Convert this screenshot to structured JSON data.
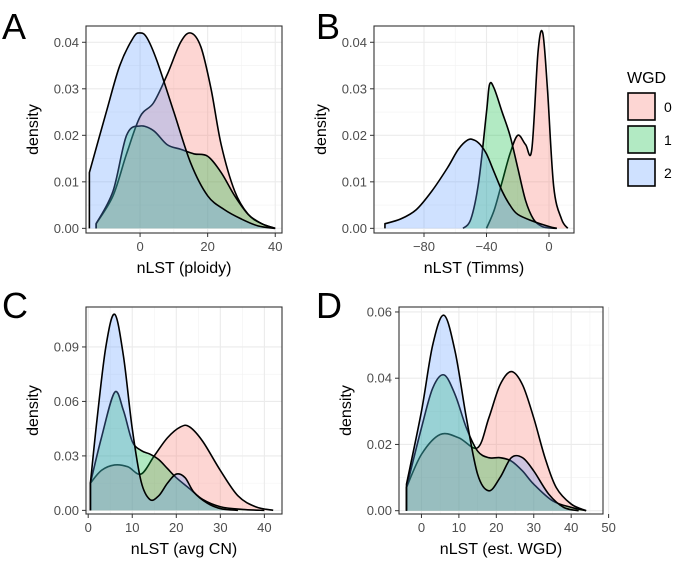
{
  "legend": {
    "title": "WGD",
    "entries": [
      {
        "label": "0",
        "color": "#f8766d"
      },
      {
        "label": "1",
        "color": "#00ba38"
      },
      {
        "label": "2",
        "color": "#619cff"
      }
    ]
  },
  "chart_data": [
    {
      "type": "area",
      "panel_label": "A",
      "xlabel": "nLST (ploidy)",
      "ylabel": "density",
      "xlim": [
        -16,
        42
      ],
      "ylim": [
        -0.001,
        0.0435
      ],
      "xticks": [
        0,
        20,
        40
      ],
      "xtick_labels": [
        "0",
        "20",
        "40"
      ],
      "yticks": [
        0.0,
        0.01,
        0.02,
        0.03,
        0.04
      ],
      "ytick_labels": [
        "0.00",
        "0.01",
        "0.02",
        "0.03",
        "0.04"
      ],
      "series": [
        {
          "name": "0",
          "x": [
            -13,
            -8,
            -4,
            0,
            4,
            8,
            12,
            15,
            18,
            21,
            24,
            28,
            32,
            36,
            40
          ],
          "y": [
            0.001,
            0.007,
            0.016,
            0.024,
            0.027,
            0.033,
            0.04,
            0.042,
            0.039,
            0.03,
            0.018,
            0.008,
            0.003,
            0.001,
            0.0
          ]
        },
        {
          "name": "1",
          "x": [
            -13,
            -8,
            -4,
            0,
            4,
            8,
            12,
            16,
            20,
            24,
            28,
            32,
            36,
            40
          ],
          "y": [
            0.001,
            0.008,
            0.02,
            0.022,
            0.021,
            0.018,
            0.017,
            0.016,
            0.0155,
            0.012,
            0.007,
            0.003,
            0.001,
            0.0
          ]
        },
        {
          "name": "2",
          "x": [
            -15,
            -10,
            -6,
            -2,
            0,
            2,
            5,
            10,
            15,
            20,
            25,
            30,
            35,
            40
          ],
          "y": [
            0.012,
            0.025,
            0.035,
            0.041,
            0.042,
            0.041,
            0.036,
            0.025,
            0.014,
            0.007,
            0.004,
            0.002,
            0.0005,
            0.0
          ]
        }
      ]
    },
    {
      "type": "area",
      "panel_label": "B",
      "xlabel": "nLST (Timms)",
      "ylabel": "density",
      "xlim": [
        -112,
        16
      ],
      "ylim": [
        -0.001,
        0.0435
      ],
      "xticks": [
        -80,
        -40,
        0
      ],
      "xtick_labels": [
        "−80",
        "−40",
        "0"
      ],
      "yticks": [
        0.0,
        0.01,
        0.02,
        0.03,
        0.04
      ],
      "ytick_labels": [
        "0.00",
        "0.01",
        "0.02",
        "0.03",
        "0.04"
      ],
      "series": [
        {
          "name": "0",
          "x": [
            -40,
            -35,
            -30,
            -25,
            -20,
            -15,
            -11,
            -7,
            -4,
            -1,
            3,
            8,
            12
          ],
          "y": [
            0.0,
            0.004,
            0.01,
            0.016,
            0.02,
            0.018,
            0.017,
            0.038,
            0.042,
            0.03,
            0.009,
            0.002,
            0.0
          ]
        },
        {
          "name": "1",
          "x": [
            -55,
            -50,
            -45,
            -40,
            -38,
            -35,
            -30,
            -25,
            -20,
            -15,
            -10,
            -5,
            0,
            5
          ],
          "y": [
            0.0,
            0.002,
            0.01,
            0.025,
            0.031,
            0.03,
            0.025,
            0.02,
            0.013,
            0.006,
            0.002,
            0.0005,
            0.0001,
            0.0
          ]
        },
        {
          "name": "2",
          "x": [
            -105,
            -95,
            -85,
            -75,
            -65,
            -58,
            -52,
            -48,
            -44,
            -40,
            -35,
            -30,
            -25,
            -20,
            -10,
            0,
            5
          ],
          "y": [
            0.001,
            0.002,
            0.004,
            0.008,
            0.013,
            0.017,
            0.019,
            0.019,
            0.018,
            0.016,
            0.012,
            0.008,
            0.005,
            0.003,
            0.0015,
            0.0004,
            0.0
          ]
        }
      ]
    },
    {
      "type": "area",
      "panel_label": "C",
      "xlabel": "nLST (avg CN)",
      "ylabel": "density",
      "xlim": [
        -0.5,
        44
      ],
      "ylim": [
        -0.002,
        0.112
      ],
      "xticks": [
        0,
        10,
        20,
        30,
        40
      ],
      "xtick_labels": [
        "0",
        "10",
        "20",
        "30",
        "40"
      ],
      "yticks": [
        0.0,
        0.03,
        0.06,
        0.09
      ],
      "ytick_labels": [
        "0.00",
        "0.03",
        "0.06",
        "0.09"
      ],
      "series": [
        {
          "name": "0",
          "x": [
            0.5,
            3,
            6,
            9,
            12,
            15,
            18,
            21,
            23,
            26,
            30,
            34,
            38,
            42
          ],
          "y": [
            0.015,
            0.022,
            0.025,
            0.024,
            0.02,
            0.03,
            0.04,
            0.046,
            0.046,
            0.038,
            0.022,
            0.008,
            0.002,
            0.0
          ]
        },
        {
          "name": "1",
          "x": [
            0.5,
            3,
            6,
            8,
            10,
            12,
            14,
            16,
            18,
            20,
            23,
            26,
            30,
            35,
            40
          ],
          "y": [
            0.015,
            0.04,
            0.065,
            0.055,
            0.038,
            0.033,
            0.031,
            0.028,
            0.023,
            0.018,
            0.012,
            0.006,
            0.002,
            0.0005,
            0.0
          ]
        },
        {
          "name": "2",
          "x": [
            0.5,
            2,
            4,
            6,
            8,
            10,
            12,
            14,
            16,
            18,
            20,
            22,
            24,
            27,
            30,
            34
          ],
          "y": [
            0.015,
            0.05,
            0.09,
            0.108,
            0.085,
            0.045,
            0.016,
            0.006,
            0.008,
            0.015,
            0.02,
            0.018,
            0.01,
            0.004,
            0.001,
            0.0
          ]
        }
      ]
    },
    {
      "type": "area",
      "panel_label": "D",
      "xlabel": "nLST (est. WGD)",
      "ylabel": "density",
      "xlim": [
        -6,
        48.5
      ],
      "ylim": [
        -0.001,
        0.0615
      ],
      "xticks": [
        0,
        10,
        20,
        30,
        40,
        50
      ],
      "xtick_labels": [
        "0",
        "10",
        "20",
        "30",
        "40",
        "50"
      ],
      "yticks": [
        0.0,
        0.02,
        0.04,
        0.06
      ],
      "ytick_labels": [
        "0.00",
        "0.02",
        "0.04",
        "0.06"
      ],
      "series": [
        {
          "name": "0",
          "x": [
            -4,
            0,
            5,
            10,
            15,
            18,
            21,
            24,
            27,
            30,
            33,
            36,
            40,
            44
          ],
          "y": [
            0.007,
            0.017,
            0.023,
            0.022,
            0.019,
            0.028,
            0.038,
            0.042,
            0.038,
            0.028,
            0.016,
            0.007,
            0.002,
            0.0
          ]
        },
        {
          "name": "1",
          "x": [
            -4,
            0,
            3,
            6,
            9,
            12,
            15,
            18,
            21,
            24,
            27,
            30,
            35,
            40,
            44
          ],
          "y": [
            0.007,
            0.025,
            0.037,
            0.041,
            0.035,
            0.025,
            0.018,
            0.016,
            0.016,
            0.015,
            0.012,
            0.008,
            0.003,
            0.001,
            0.0
          ]
        },
        {
          "name": "2",
          "x": [
            -4,
            0,
            3,
            6,
            9,
            12,
            15,
            18,
            21,
            24,
            27,
            30,
            34,
            38,
            42
          ],
          "y": [
            0.008,
            0.03,
            0.05,
            0.059,
            0.048,
            0.028,
            0.011,
            0.006,
            0.01,
            0.016,
            0.016,
            0.012,
            0.005,
            0.001,
            0.0
          ]
        }
      ]
    }
  ]
}
